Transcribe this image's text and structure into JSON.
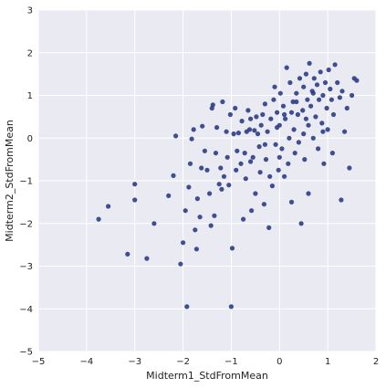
{
  "chart_data": {
    "type": "scatter",
    "title": "",
    "xlabel": "Midterm1_StdFromMean",
    "ylabel": "Midterm2_StdFromMean",
    "xlim": [
      -5,
      2
    ],
    "ylim": [
      -5,
      3
    ],
    "xticks": [
      -5,
      -4,
      -3,
      -2,
      -1,
      0,
      1,
      2
    ],
    "yticks": [
      -5,
      -4,
      -3,
      -2,
      -1,
      0,
      1,
      2,
      3
    ],
    "grid": true,
    "background_color": "#e9eaf2",
    "grid_color": "#ffffff",
    "marker_color": "#2b3d86",
    "points": [
      [
        -3.75,
        -1.9
      ],
      [
        -3.55,
        -1.6
      ],
      [
        -3.15,
        -2.72
      ],
      [
        -3.0,
        -1.45
      ],
      [
        -3.0,
        -1.08
      ],
      [
        -2.75,
        -2.82
      ],
      [
        -2.6,
        -2.0
      ],
      [
        -2.3,
        -1.35
      ],
      [
        -2.2,
        -0.88
      ],
      [
        -2.15,
        0.05
      ],
      [
        -2.05,
        -2.95
      ],
      [
        -2.0,
        -2.45
      ],
      [
        -1.95,
        -1.7
      ],
      [
        -1.92,
        -3.95
      ],
      [
        -1.88,
        -1.15
      ],
      [
        -1.85,
        -0.6
      ],
      [
        -1.82,
        -0.02
      ],
      [
        -1.78,
        0.2
      ],
      [
        -1.75,
        -2.15
      ],
      [
        -1.72,
        -2.6
      ],
      [
        -1.7,
        -1.42
      ],
      [
        -1.65,
        -1.85
      ],
      [
        -1.62,
        -0.7
      ],
      [
        -1.6,
        0.28
      ],
      [
        -1.55,
        -0.3
      ],
      [
        -1.5,
        -0.75
      ],
      [
        -1.45,
        -1.3
      ],
      [
        -1.42,
        -2.05
      ],
      [
        -1.4,
        0.7
      ],
      [
        -1.38,
        0.78
      ],
      [
        -1.35,
        -1.82
      ],
      [
        -1.32,
        -0.35
      ],
      [
        -1.3,
        0.25
      ],
      [
        -1.25,
        -1.08
      ],
      [
        -1.22,
        -0.7
      ],
      [
        -1.2,
        -1.2
      ],
      [
        -1.18,
        0.85
      ],
      [
        -1.15,
        -0.9
      ],
      [
        -1.1,
        0.15
      ],
      [
        -1.08,
        -0.45
      ],
      [
        -1.05,
        -1.1
      ],
      [
        -1.02,
        0.55
      ],
      [
        -1.0,
        -3.95
      ],
      [
        -0.98,
        -2.58
      ],
      [
        -0.95,
        0.1
      ],
      [
        -0.92,
        0.7
      ],
      [
        -0.9,
        -0.75
      ],
      [
        -0.88,
        -0.3
      ],
      [
        -0.85,
        0.12
      ],
      [
        -0.8,
        -0.6
      ],
      [
        -0.78,
        0.4
      ],
      [
        -0.75,
        -1.9
      ],
      [
        -0.72,
        -0.35
      ],
      [
        -0.7,
        -0.95
      ],
      [
        -0.68,
        0.15
      ],
      [
        -0.65,
        0.65
      ],
      [
        -0.62,
        0.2
      ],
      [
        -0.6,
        0.45
      ],
      [
        -0.58,
        -1.7
      ],
      [
        -0.55,
        -0.45
      ],
      [
        -0.52,
        0.18
      ],
      [
        -0.5,
        -1.3
      ],
      [
        -0.48,
        0.5
      ],
      [
        -0.45,
        0.1
      ],
      [
        -0.42,
        -0.2
      ],
      [
        -0.4,
        -0.8
      ],
      [
        -0.38,
        0.3
      ],
      [
        -0.35,
        0.55
      ],
      [
        -0.32,
        -1.55
      ],
      [
        -0.3,
        0.8
      ],
      [
        -0.28,
        -0.5
      ],
      [
        -0.25,
        0.15
      ],
      [
        -0.22,
        -2.1
      ],
      [
        -0.2,
        -0.9
      ],
      [
        -0.18,
        0.45
      ],
      [
        -0.15,
        -1.12
      ],
      [
        -0.12,
        0.9
      ],
      [
        -0.1,
        1.2
      ],
      [
        -0.08,
        -0.15
      ],
      [
        -0.05,
        0.6
      ],
      [
        -0.02,
        -0.75
      ],
      [
        0.0,
        0.3
      ],
      [
        0.0,
        -0.45
      ],
      [
        0.02,
        1.05
      ],
      [
        0.05,
        -0.25
      ],
      [
        0.08,
        0.75
      ],
      [
        0.1,
        -0.9
      ],
      [
        0.12,
        0.45
      ],
      [
        0.15,
        1.65
      ],
      [
        0.18,
        -0.6
      ],
      [
        0.2,
        0.0
      ],
      [
        0.22,
        1.3
      ],
      [
        0.25,
        -1.5
      ],
      [
        0.28,
        0.85
      ],
      [
        0.3,
        0.2
      ],
      [
        0.32,
        -0.35
      ],
      [
        0.35,
        1.05
      ],
      [
        0.38,
        0.55
      ],
      [
        0.4,
        -0.1
      ],
      [
        0.42,
        1.4
      ],
      [
        0.45,
        -2.0
      ],
      [
        0.48,
        0.65
      ],
      [
        0.5,
        1.2
      ],
      [
        0.5,
        0.1
      ],
      [
        0.52,
        -0.5
      ],
      [
        0.55,
        1.5
      ],
      [
        0.58,
        0.9
      ],
      [
        0.6,
        0.3
      ],
      [
        0.6,
        -1.3
      ],
      [
        0.62,
        1.75
      ],
      [
        0.65,
        0.75
      ],
      [
        0.68,
        1.1
      ],
      [
        0.7,
        0.0
      ],
      [
        0.72,
        1.4
      ],
      [
        0.75,
        0.5
      ],
      [
        0.78,
        1.25
      ],
      [
        0.8,
        -0.25
      ],
      [
        0.82,
        0.9
      ],
      [
        0.85,
        1.55
      ],
      [
        0.88,
        0.35
      ],
      [
        0.9,
        1.0
      ],
      [
        0.92,
        -0.6
      ],
      [
        0.95,
        1.3
      ],
      [
        0.98,
        0.7
      ],
      [
        1.0,
        0.2
      ],
      [
        1.02,
        1.6
      ],
      [
        1.05,
        1.15
      ],
      [
        1.08,
        0.9
      ],
      [
        1.1,
        -0.35
      ],
      [
        1.12,
        0.55
      ],
      [
        1.15,
        1.72
      ],
      [
        1.2,
        1.3
      ],
      [
        1.25,
        0.95
      ],
      [
        1.28,
        -1.45
      ],
      [
        1.3,
        1.1
      ],
      [
        1.35,
        0.15
      ],
      [
        1.4,
        0.7
      ],
      [
        1.45,
        -0.7
      ],
      [
        1.5,
        1.0
      ],
      [
        1.55,
        1.4
      ],
      [
        1.6,
        1.35
      ],
      [
        -0.6,
        -0.55
      ],
      [
        -0.05,
        0.25
      ],
      [
        0.35,
        0.85
      ],
      [
        0.7,
        1.05
      ],
      [
        0.1,
        0.55
      ],
      [
        -0.3,
        -0.15
      ],
      [
        0.55,
        0.45
      ],
      [
        0.25,
        0.6
      ],
      [
        0.9,
        0.15
      ]
    ]
  }
}
